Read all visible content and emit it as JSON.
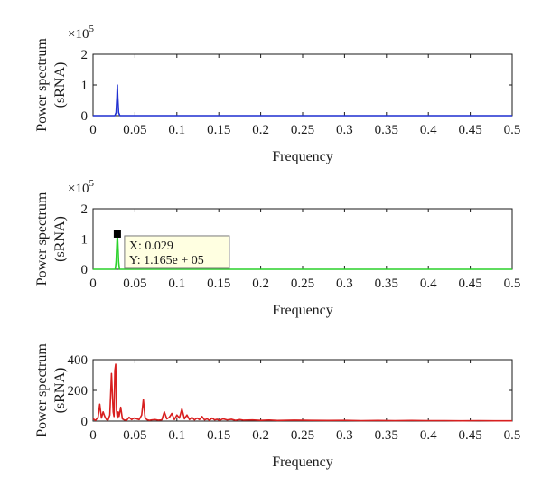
{
  "chart_data": [
    {
      "type": "line",
      "xlabel": "Frequency",
      "ylabel": [
        "Power spectrum",
        "(sRNA)"
      ],
      "xlim": [
        0,
        0.5
      ],
      "ylim": [
        0,
        2
      ],
      "y_multiplier": "×10",
      "y_exponent": "5",
      "xticks": [
        "0",
        "0.05",
        "0.1",
        "0.15",
        "0.2",
        "0.25",
        "0.3",
        "0.35",
        "0.4",
        "0.45",
        "0.5"
      ],
      "yticks": [
        "0",
        "1",
        "2"
      ],
      "color": "#1f2fd0",
      "series": [
        {
          "x": [
            0,
            0.026,
            0.0275,
            0.0285,
            0.029,
            0.0295,
            0.0305,
            0.032,
            0.5
          ],
          "y": [
            0,
            0,
            0.1,
            0.6,
            1.0,
            0.6,
            0.1,
            0,
            0
          ]
        }
      ]
    },
    {
      "type": "line",
      "xlabel": "Frequency",
      "ylabel": [
        "Power spectrum",
        "(sRNA)"
      ],
      "xlim": [
        0,
        0.5
      ],
      "ylim": [
        0,
        2
      ],
      "y_multiplier": "×10",
      "y_exponent": "5",
      "xticks": [
        "0",
        "0.05",
        "0.1",
        "0.15",
        "0.2",
        "0.25",
        "0.3",
        "0.35",
        "0.4",
        "0.45",
        "0.5"
      ],
      "yticks": [
        "0",
        "1",
        "2"
      ],
      "color": "#2ad12a",
      "series": [
        {
          "x": [
            0,
            0.0265,
            0.0275,
            0.0285,
            0.029,
            0.0295,
            0.0305,
            0.0315,
            0.5
          ],
          "y": [
            0,
            0,
            0.25,
            0.9,
            1.165,
            0.9,
            0.25,
            0,
            0
          ]
        }
      ],
      "datatip": {
        "x": 0.029,
        "y": 1.165,
        "x_text": "X: 0.029",
        "y_text": "Y: 1.165e + 05"
      }
    },
    {
      "type": "line",
      "xlabel": "Frequency",
      "ylabel": [
        "Power spectrum",
        "(sRNA)"
      ],
      "xlim": [
        0,
        0.5
      ],
      "ylim": [
        0,
        400
      ],
      "xticks": [
        "0",
        "0.05",
        "0.1",
        "0.15",
        "0.2",
        "0.25",
        "0.3",
        "0.35",
        "0.4",
        "0.45",
        "0.5"
      ],
      "yticks": [
        "0",
        "200",
        "400"
      ],
      "color": "#d81f1f",
      "series": [
        {
          "x": [
            0,
            0.003,
            0.006,
            0.008,
            0.01,
            0.012,
            0.014,
            0.016,
            0.018,
            0.02,
            0.022,
            0.024,
            0.025,
            0.026,
            0.027,
            0.028,
            0.029,
            0.03,
            0.031,
            0.033,
            0.035,
            0.037,
            0.04,
            0.043,
            0.046,
            0.049,
            0.052,
            0.055,
            0.058,
            0.06,
            0.062,
            0.064,
            0.067,
            0.07,
            0.074,
            0.078,
            0.082,
            0.085,
            0.088,
            0.091,
            0.094,
            0.097,
            0.1,
            0.103,
            0.106,
            0.109,
            0.112,
            0.115,
            0.118,
            0.121,
            0.124,
            0.127,
            0.13,
            0.133,
            0.136,
            0.139,
            0.142,
            0.145,
            0.148,
            0.151,
            0.155,
            0.16,
            0.165,
            0.17,
            0.175,
            0.18,
            0.19,
            0.2,
            0.21,
            0.22,
            0.24,
            0.26,
            0.28,
            0.3,
            0.32,
            0.34,
            0.36,
            0.38,
            0.4,
            0.42,
            0.44,
            0.46,
            0.48,
            0.5
          ],
          "y": [
            15,
            5,
            25,
            110,
            20,
            60,
            30,
            10,
            8,
            40,
            310,
            60,
            30,
            330,
            370,
            70,
            20,
            60,
            30,
            90,
            15,
            8,
            5,
            25,
            10,
            20,
            15,
            10,
            40,
            140,
            25,
            10,
            5,
            8,
            10,
            6,
            8,
            60,
            15,
            25,
            50,
            10,
            40,
            20,
            80,
            15,
            40,
            10,
            25,
            8,
            20,
            10,
            30,
            8,
            15,
            5,
            20,
            8,
            12,
            5,
            15,
            8,
            12,
            5,
            10,
            6,
            8,
            5,
            7,
            4,
            6,
            5,
            4,
            5,
            3,
            4,
            3,
            4,
            3,
            3,
            2,
            3,
            2,
            2
          ]
        }
      ]
    }
  ]
}
